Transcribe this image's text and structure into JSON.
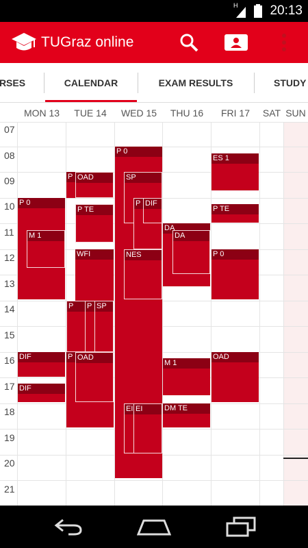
{
  "status_bar": {
    "network": "H",
    "time": "20:13"
  },
  "app_bar": {
    "title": "TUGraz online",
    "logo_icon": "graduation-cap-icon",
    "search_icon": "search-icon",
    "profile_icon": "profile-card-icon",
    "menu_icon": "overflow-menu-icon"
  },
  "tabs": [
    "RSES",
    "CALENDAR",
    "EXAM RESULTS",
    "STUDY"
  ],
  "days": [
    "MON 13",
    "TUE 14",
    "WED 15",
    "THU 16",
    "FRI 17",
    "SAT",
    "SUN"
  ],
  "hours": [
    "07",
    "08",
    "09",
    "10",
    "11",
    "12",
    "13",
    "14",
    "15",
    "16",
    "17",
    "18",
    "19",
    "20",
    "21"
  ],
  "events": [
    "P 0",
    "ES 1",
    "P",
    "OAD",
    "SP",
    "P",
    "DIF",
    "P 0",
    "P TE",
    "P TE",
    "M 1",
    "P 0",
    "DA",
    "WFI",
    "NES",
    "P 0",
    "P",
    "P",
    "SP",
    "DIF",
    "P",
    "OAD",
    "OAD",
    "M 1",
    "DIF",
    "EI",
    "EI",
    "DM TE"
  ],
  "nav": {
    "back": "back-icon",
    "home": "home-icon",
    "recents": "recent-apps-icon"
  },
  "colors": {
    "accent": "#e2001a",
    "event": "#c4001c",
    "event_label": "#8c0014"
  }
}
